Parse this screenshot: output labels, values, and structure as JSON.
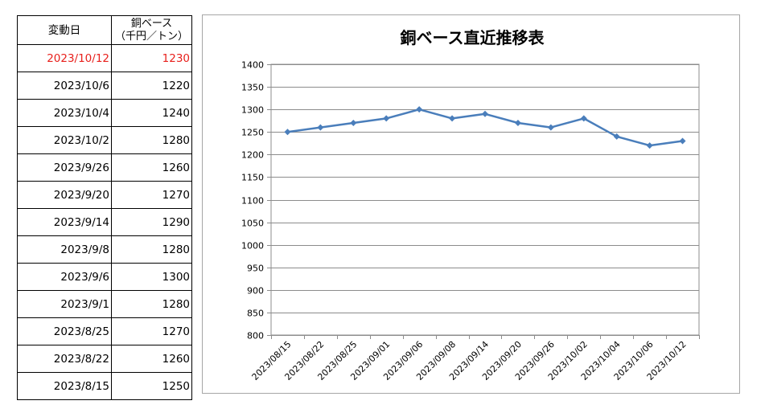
{
  "table": {
    "header_date": "変動日",
    "header_price_line1": "銅ベース",
    "header_price_line2": "（千円／トン）",
    "highlight_color": "#e8201c",
    "rows": [
      {
        "date": "2023/10/12",
        "price": "1230"
      },
      {
        "date": "2023/10/6",
        "price": "1220"
      },
      {
        "date": "2023/10/4",
        "price": "1240"
      },
      {
        "date": "2023/10/2",
        "price": "1280"
      },
      {
        "date": "2023/9/26",
        "price": "1260"
      },
      {
        "date": "2023/9/20",
        "price": "1270"
      },
      {
        "date": "2023/9/14",
        "price": "1290"
      },
      {
        "date": "2023/9/8",
        "price": "1280"
      },
      {
        "date": "2023/9/6",
        "price": "1300"
      },
      {
        "date": "2023/9/1",
        "price": "1280"
      },
      {
        "date": "2023/8/25",
        "price": "1270"
      },
      {
        "date": "2023/8/22",
        "price": "1260"
      },
      {
        "date": "2023/8/15",
        "price": "1250"
      }
    ]
  },
  "chart_data": {
    "type": "line",
    "title": "銅ベース直近推移表",
    "categories": [
      "2023/08/15",
      "2023/08/22",
      "2023/08/25",
      "2023/09/01",
      "2023/09/06",
      "2023/09/08",
      "2023/09/14",
      "2023/09/20",
      "2023/09/26",
      "2023/10/02",
      "2023/10/04",
      "2023/10/06",
      "2023/10/12"
    ],
    "series": [
      {
        "values": [
          1250,
          1260,
          1270,
          1280,
          1300,
          1280,
          1290,
          1270,
          1260,
          1280,
          1240,
          1220,
          1230
        ],
        "color": "#4a7ebb"
      }
    ],
    "ylim": [
      800,
      1400
    ],
    "yticks": [
      "800",
      "850",
      "900",
      "950",
      "1000",
      "1050",
      "1100",
      "1150",
      "1200",
      "1250",
      "1300",
      "1350",
      "1400"
    ],
    "grid": true,
    "legend": "none"
  }
}
